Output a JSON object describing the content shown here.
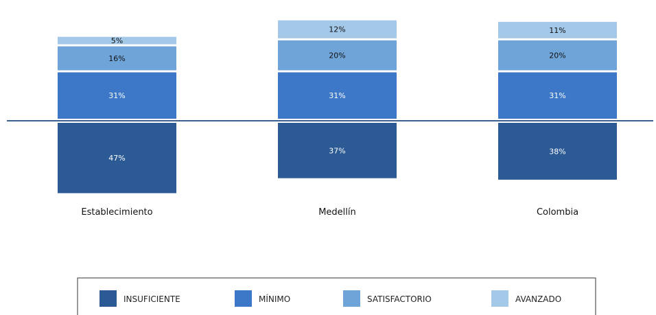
{
  "chart_data": {
    "type": "bar",
    "subtype": "diverging-stacked",
    "categories": [
      "Establecimiento",
      "Medellín",
      "Colombia"
    ],
    "series": [
      {
        "name": "INSUFICIENTE",
        "values": [
          47,
          37,
          38
        ],
        "labels": [
          "47%",
          "37%",
          "38%"
        ],
        "color": "#2b5a94",
        "side": "below"
      },
      {
        "name": "MÍNIMO",
        "values": [
          31,
          31,
          31
        ],
        "labels": [
          "31%",
          "31%",
          "31%"
        ],
        "color": "#3d78c8",
        "side": "above"
      },
      {
        "name": "SATISFACTORIO",
        "values": [
          16,
          20,
          20
        ],
        "labels": [
          "16%",
          "20%",
          "20%"
        ],
        "color": "#6fa4d8",
        "side": "above"
      },
      {
        "name": "AVANZADO",
        "values": [
          5,
          12,
          11
        ],
        "labels": [
          "5%",
          "12%",
          "11%"
        ],
        "color": "#a3c8e8",
        "side": "above"
      }
    ],
    "legend_position": "bottom",
    "grid": false,
    "axis_line_color": "#3b5f8f"
  }
}
